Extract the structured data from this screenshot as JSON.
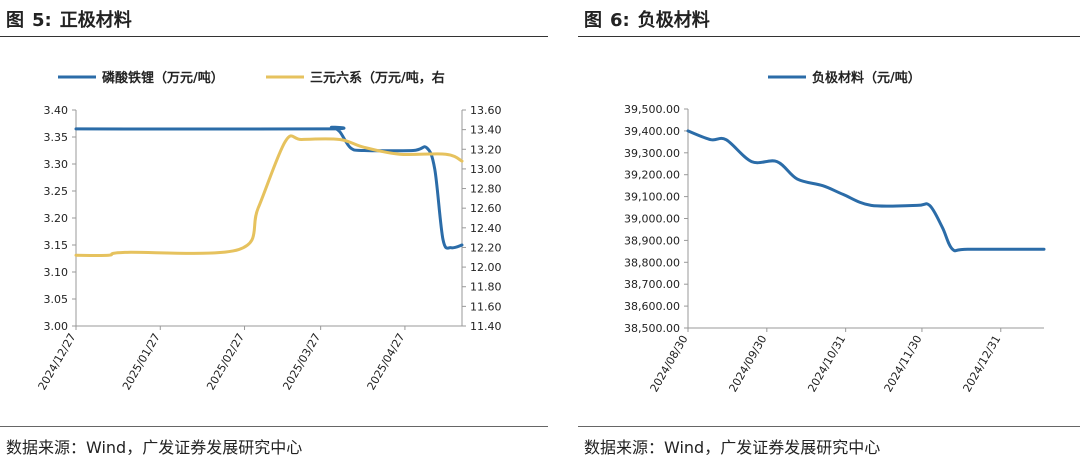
{
  "figures": [
    {
      "fig_label": "图",
      "fig_number": "5:",
      "title": "正极材料",
      "source": "数据来源：Wind，广发证券发展研究中心"
    },
    {
      "fig_label": "图",
      "fig_number": "6:",
      "title": "负极材料",
      "source": "数据来源：Wind，广发证券发展研究中心"
    }
  ],
  "chart_data": [
    {
      "type": "line",
      "x_tick_labels": [
        "2024/12/27",
        "2025/01/27",
        "2025/02/27",
        "2025/03/27",
        "2025/04/27"
      ],
      "y_left_ticks": [
        "3.40",
        "3.35",
        "3.30",
        "3.25",
        "3.20",
        "3.15",
        "3.10",
        "3.05",
        "3.00"
      ],
      "y_right_ticks": [
        "13.60",
        "13.40",
        "13.20",
        "13.00",
        "12.80",
        "12.60",
        "12.40",
        "12.20",
        "12.00",
        "11.80",
        "11.60",
        "11.40"
      ],
      "ylim_left": [
        3.0,
        3.4
      ],
      "ylim_right": [
        11.4,
        13.6
      ],
      "legend_position": "top",
      "series": [
        {
          "name": "磷酸铁锂（万元/吨）",
          "axis": "left",
          "color": "#2b6ca8",
          "points": [
            [
              "2024/12/27",
              3.365
            ],
            [
              "2025/03/28",
              3.365
            ],
            [
              "2025/03/31",
              3.368
            ],
            [
              "2025/04/03",
              3.36
            ],
            [
              "2025/04/07",
              3.33
            ],
            [
              "2025/04/12",
              3.325
            ],
            [
              "2025/04/30",
              3.325
            ],
            [
              "2025/05/05",
              3.33
            ],
            [
              "2025/05/08",
              3.29
            ],
            [
              "2025/05/11",
              3.16
            ],
            [
              "2025/05/14",
              3.145
            ],
            [
              "2025/05/18",
              3.15
            ]
          ]
        },
        {
          "name": "三元六系（万元/吨，右",
          "axis": "right",
          "color": "#e6c25e",
          "points": [
            [
              "2024/12/27",
              12.12
            ],
            [
              "2025/01/08",
              12.12
            ],
            [
              "2025/01/14",
              12.15
            ],
            [
              "2025/02/25",
              12.18
            ],
            [
              "2025/03/04",
              12.6
            ],
            [
              "2025/03/14",
              13.28
            ],
            [
              "2025/03/20",
              13.3
            ],
            [
              "2025/04/03",
              13.3
            ],
            [
              "2025/04/12",
              13.22
            ],
            [
              "2025/04/25",
              13.15
            ],
            [
              "2025/05/12",
              13.15
            ],
            [
              "2025/05/18",
              13.08
            ]
          ]
        }
      ]
    },
    {
      "type": "line",
      "x_tick_labels": [
        "2024/08/30",
        "2024/09/30",
        "2024/10/31",
        "2024/11/30",
        "2024/12/31"
      ],
      "y_ticks": [
        "39,500.00",
        "39,400.00",
        "39,300.00",
        "39,200.00",
        "39,100.00",
        "39,000.00",
        "38,900.00",
        "38,800.00",
        "38,700.00",
        "38,600.00",
        "38,500.00"
      ],
      "ylim": [
        38500,
        39500
      ],
      "legend_position": "top",
      "series": [
        {
          "name": "负极材料（元/吨）",
          "color": "#2b6ca8",
          "points": [
            [
              "2024/08/30",
              39400
            ],
            [
              "2024/09/08",
              39360
            ],
            [
              "2024/09/14",
              39360
            ],
            [
              "2024/09/24",
              39260
            ],
            [
              "2024/10/04",
              39260
            ],
            [
              "2024/10/12",
              39180
            ],
            [
              "2024/10/22",
              39150
            ],
            [
              "2024/10/30",
              39110
            ],
            [
              "2024/11/10",
              39060
            ],
            [
              "2024/11/28",
              39060
            ],
            [
              "2024/12/03",
              39060
            ],
            [
              "2024/12/08",
              38960
            ],
            [
              "2024/12/12",
              38860
            ],
            [
              "2024/12/18",
              38860
            ],
            [
              "2025/01/17",
              38860
            ]
          ]
        }
      ]
    }
  ]
}
